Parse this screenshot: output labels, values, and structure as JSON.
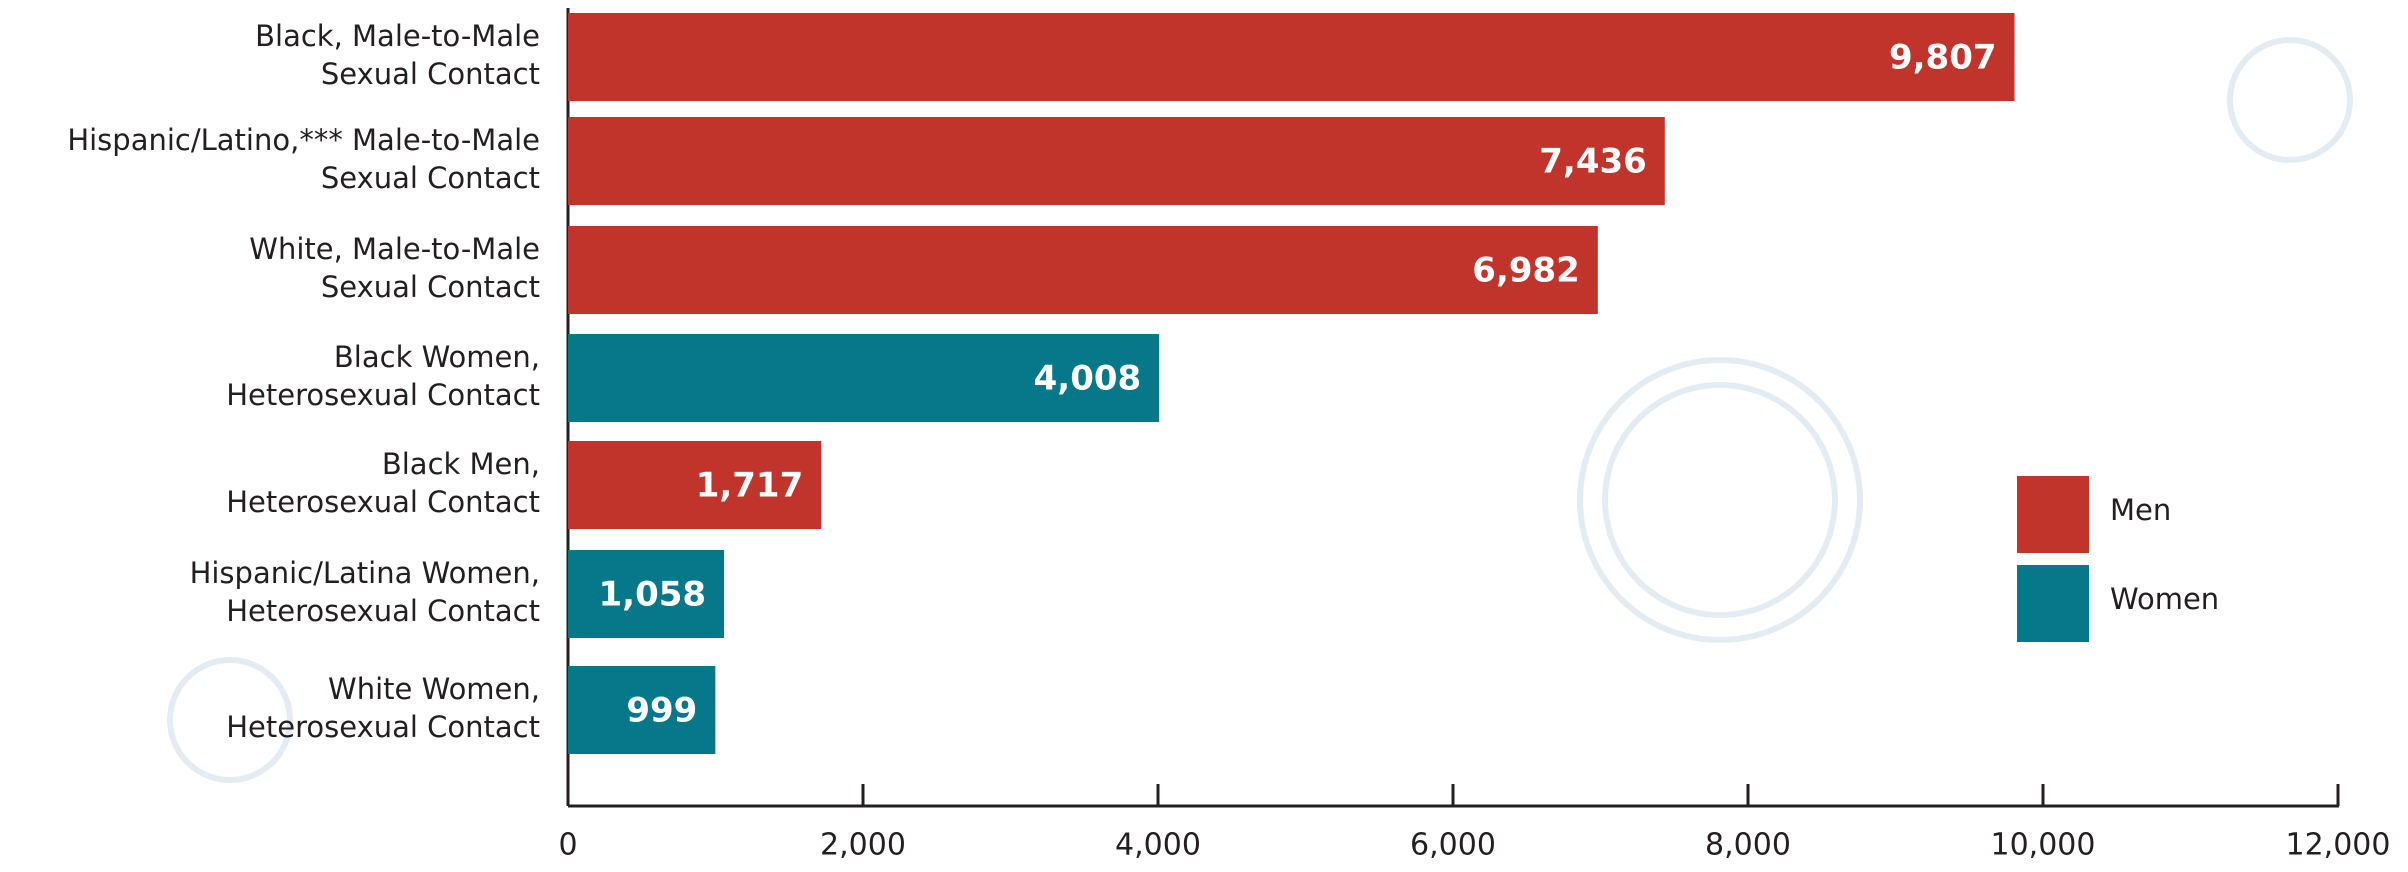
{
  "chart_data": {
    "type": "hbar",
    "categories": [
      [
        "Black, Male-to-Male",
        "Sexual Contact"
      ],
      [
        "Hispanic/Latino,*** Male-to-Male",
        "Sexual Contact"
      ],
      [
        "White, Male-to-Male",
        "Sexual Contact"
      ],
      [
        "Black Women,",
        "Heterosexual Contact"
      ],
      [
        "Black Men,",
        "Heterosexual Contact"
      ],
      [
        "Hispanic/Latina Women,",
        "Heterosexual Contact"
      ],
      [
        "White Women,",
        "Heterosexual Contact"
      ]
    ],
    "series": [
      {
        "name": "Men",
        "color": "#c0342b",
        "values": [
          9807,
          7436,
          6982,
          null,
          1717,
          null,
          null
        ],
        "value_labels": [
          "9,807",
          "7,436",
          "6,982",
          null,
          "1,717",
          null,
          null
        ]
      },
      {
        "name": "Women",
        "color": "#06788a",
        "values": [
          null,
          null,
          null,
          4008,
          null,
          1058,
          999
        ],
        "value_labels": [
          null,
          null,
          null,
          "4,008",
          null,
          "1,058",
          "999"
        ]
      }
    ],
    "xlim": [
      0,
      12000
    ],
    "xticks": [
      0,
      {
        "value": 2000,
        "label": "2,000"
      },
      {
        "value": 4000,
        "label": "4,000"
      },
      {
        "value": 6000,
        "label": "6,000"
      },
      {
        "value": 8000,
        "label": "8,000"
      },
      {
        "value": 10000,
        "label": "10,000"
      },
      {
        "value": 12000,
        "label": "12,000"
      }
    ],
    "legend": "right"
  }
}
